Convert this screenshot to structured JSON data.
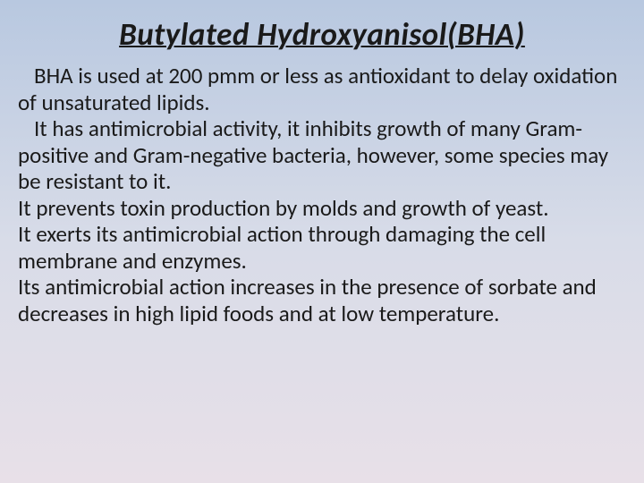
{
  "slide": {
    "title": "Butylated Hydroxyanisol(BHA)",
    "paragraphs": [
      "BHA is used at 200 pmm or less as antioxidant to delay oxidation of unsaturated lipids.",
      "It has antimicrobial activity, it inhibits growth of many Gram-positive and Gram-negative bacteria, however, some species may be resistant to it.",
      "It prevents toxin production by molds and growth of yeast.",
      "It exerts its antimicrobial action through damaging the cell membrane and enzymes.",
      "Its antimicrobial action increases in the presence of sorbate and decreases in high lipid foods and at low temperature."
    ]
  },
  "style": {
    "background_gradient_top": "#b8c8e0",
    "background_gradient_mid": "#d8dce8",
    "background_gradient_bottom": "#e8e0e8",
    "title_fontsize": 35,
    "title_color": "#1a1a1a",
    "title_font_style": "bold italic underline",
    "body_fontsize": 25,
    "body_color": "#1a1a1a",
    "font_family": "Calibri"
  }
}
